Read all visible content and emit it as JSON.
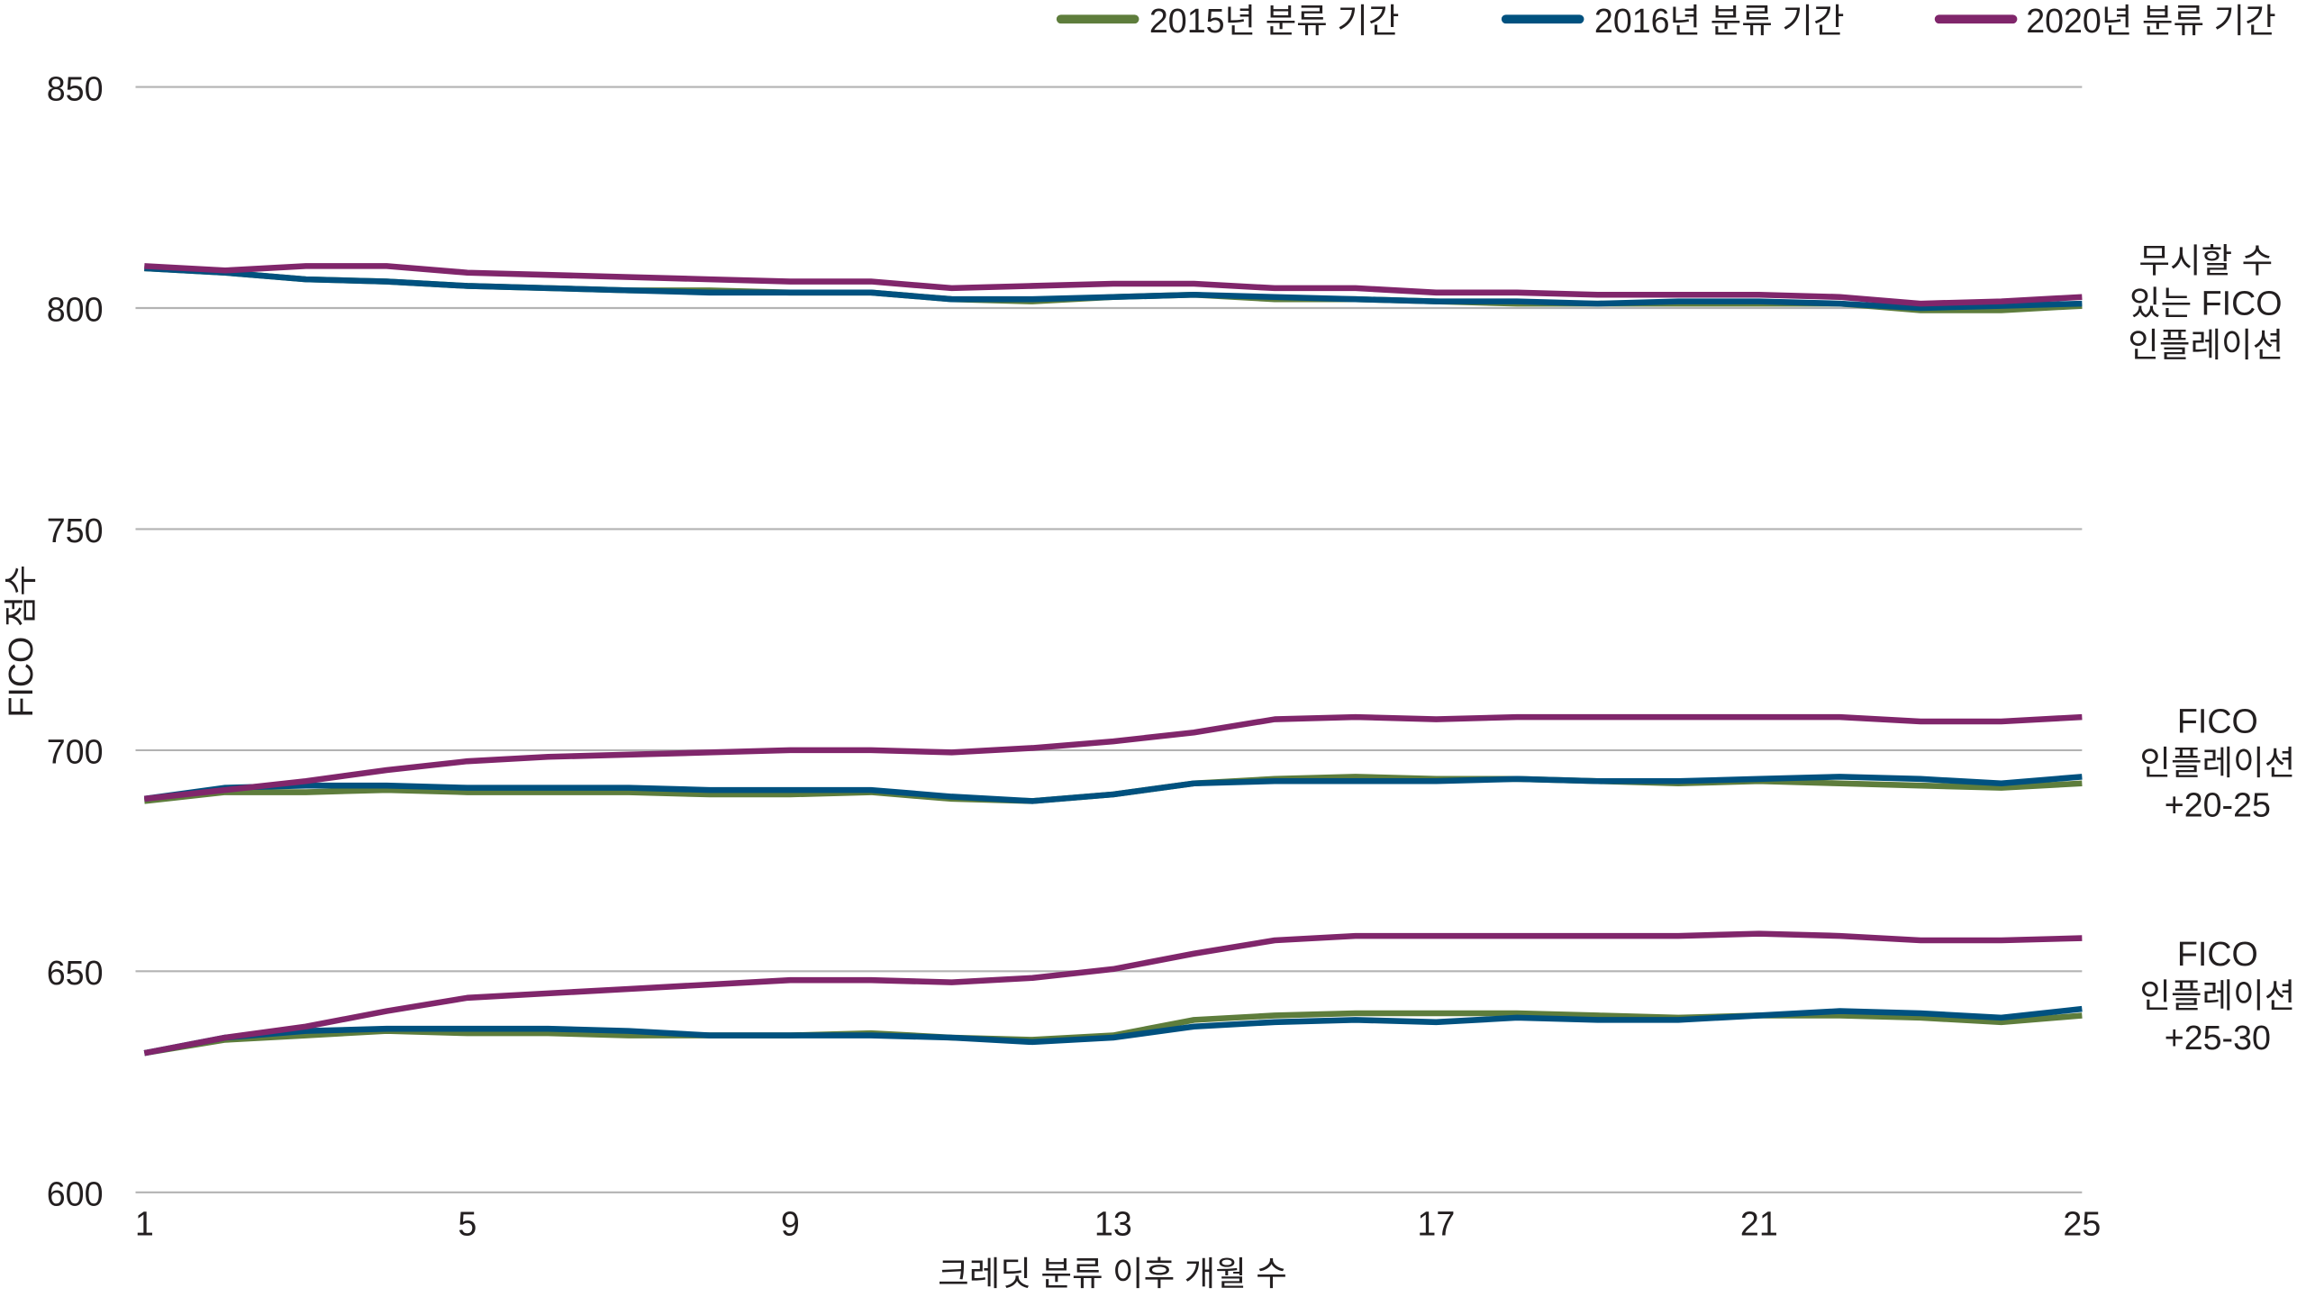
{
  "chart_data": {
    "type": "line",
    "title": "",
    "xlabel": "크레딧 분류 이후 개월 수",
    "ylabel": "FICO 점수",
    "ylim": [
      600,
      850
    ],
    "yticks": [
      600,
      650,
      700,
      750,
      800,
      850
    ],
    "xlim": [
      1,
      25
    ],
    "xticks": [
      1,
      5,
      9,
      13,
      17,
      21,
      25
    ],
    "grid": "horizontal",
    "legend_position": "top-right",
    "legend": [
      {
        "name": "2015년 분류 기간",
        "color": "#5e7d3c"
      },
      {
        "name": "2016년 분류 기간",
        "color": "#00517f"
      },
      {
        "name": "2020년 분류 기간",
        "color": "#80266b"
      }
    ],
    "x": [
      1,
      2,
      3,
      4,
      5,
      6,
      7,
      8,
      9,
      10,
      11,
      12,
      13,
      14,
      15,
      16,
      17,
      18,
      19,
      20,
      21,
      22,
      23,
      24,
      25
    ],
    "groups": [
      {
        "label": [
          "무시할 수",
          "있는 FICO",
          "인플레이션"
        ],
        "series": [
          {
            "name": "2015년 분류 기간",
            "values": [
              809,
              808,
              806.5,
              806,
              805,
              804.5,
              804,
              804,
              803.5,
              803.5,
              802,
              801.5,
              802.5,
              803,
              802,
              802,
              801.5,
              801,
              801,
              801,
              801,
              801,
              799.5,
              799.5,
              800.5
            ]
          },
          {
            "name": "2016년 분류 기간",
            "values": [
              809,
              808,
              806.5,
              806,
              805,
              804.5,
              804,
              803.5,
              803.5,
              803.5,
              802,
              802,
              802.5,
              803,
              802.5,
              802,
              801.5,
              801.5,
              801,
              801.5,
              801.5,
              801,
              800,
              800.5,
              801
            ]
          },
          {
            "name": "2020년 분류 기간",
            "values": [
              809.5,
              808.5,
              809.5,
              809.5,
              808,
              807.5,
              807,
              806.5,
              806,
              806,
              804.5,
              805,
              805.5,
              805.5,
              804.5,
              804.5,
              803.5,
              803.5,
              803,
              803,
              803,
              802.5,
              801,
              801.5,
              802.5
            ]
          }
        ]
      },
      {
        "label": [
          "FICO",
          "인플레이션",
          "+20-25"
        ],
        "series": [
          {
            "name": "2015년 분류 기간",
            "values": [
              688.5,
              690.5,
              690.5,
              691,
              690.5,
              690.5,
              690.5,
              690,
              690,
              690.5,
              689,
              688.5,
              690,
              692.5,
              693.5,
              694,
              693.5,
              693.5,
              693,
              692.5,
              693,
              692.5,
              692,
              691.5,
              692.5
            ]
          },
          {
            "name": "2016년 분류 기간",
            "values": [
              689,
              691.5,
              692,
              692,
              691.5,
              691.5,
              691.5,
              691,
              691,
              691,
              689.5,
              688.5,
              690,
              692.5,
              693,
              693,
              693,
              693.5,
              693,
              693,
              693.5,
              694,
              693.5,
              692.5,
              694
            ]
          },
          {
            "name": "2020년 분류 기간",
            "values": [
              689,
              691,
              693,
              695.5,
              697.5,
              698.5,
              699,
              699.5,
              700,
              700,
              699.5,
              700.5,
              702,
              704,
              707,
              707.5,
              707,
              707.5,
              707.5,
              707.5,
              707.5,
              707.5,
              706.5,
              706.5,
              707.5
            ]
          }
        ]
      },
      {
        "label": [
          "FICO",
          "인플레이션",
          "+25-30"
        ],
        "series": [
          {
            "name": "2015년 분류 기간",
            "values": [
              631.5,
              634.5,
              635.5,
              636.5,
              636,
              636,
              635.5,
              635.5,
              635.5,
              636,
              635,
              634.5,
              635.5,
              639,
              640,
              640.5,
              640.5,
              640.5,
              640,
              639.5,
              640,
              640,
              639.5,
              638.5,
              640
            ]
          },
          {
            "name": "2016년 분류 기간",
            "values": [
              631.5,
              635,
              636.5,
              637,
              637,
              637,
              636.5,
              635.5,
              635.5,
              635.5,
              635,
              634,
              635,
              637.5,
              638.5,
              639,
              638.5,
              639.5,
              639,
              639,
              640,
              641,
              640.5,
              639.5,
              641.5
            ]
          },
          {
            "name": "2020년 분류 기간",
            "values": [
              631.5,
              635,
              637.5,
              641,
              644,
              645,
              646,
              647,
              648,
              648,
              647.5,
              648.5,
              650.5,
              654,
              657,
              658,
              658,
              658,
              658,
              658,
              658.5,
              658,
              657,
              657,
              657.5
            ]
          }
        ]
      }
    ]
  }
}
